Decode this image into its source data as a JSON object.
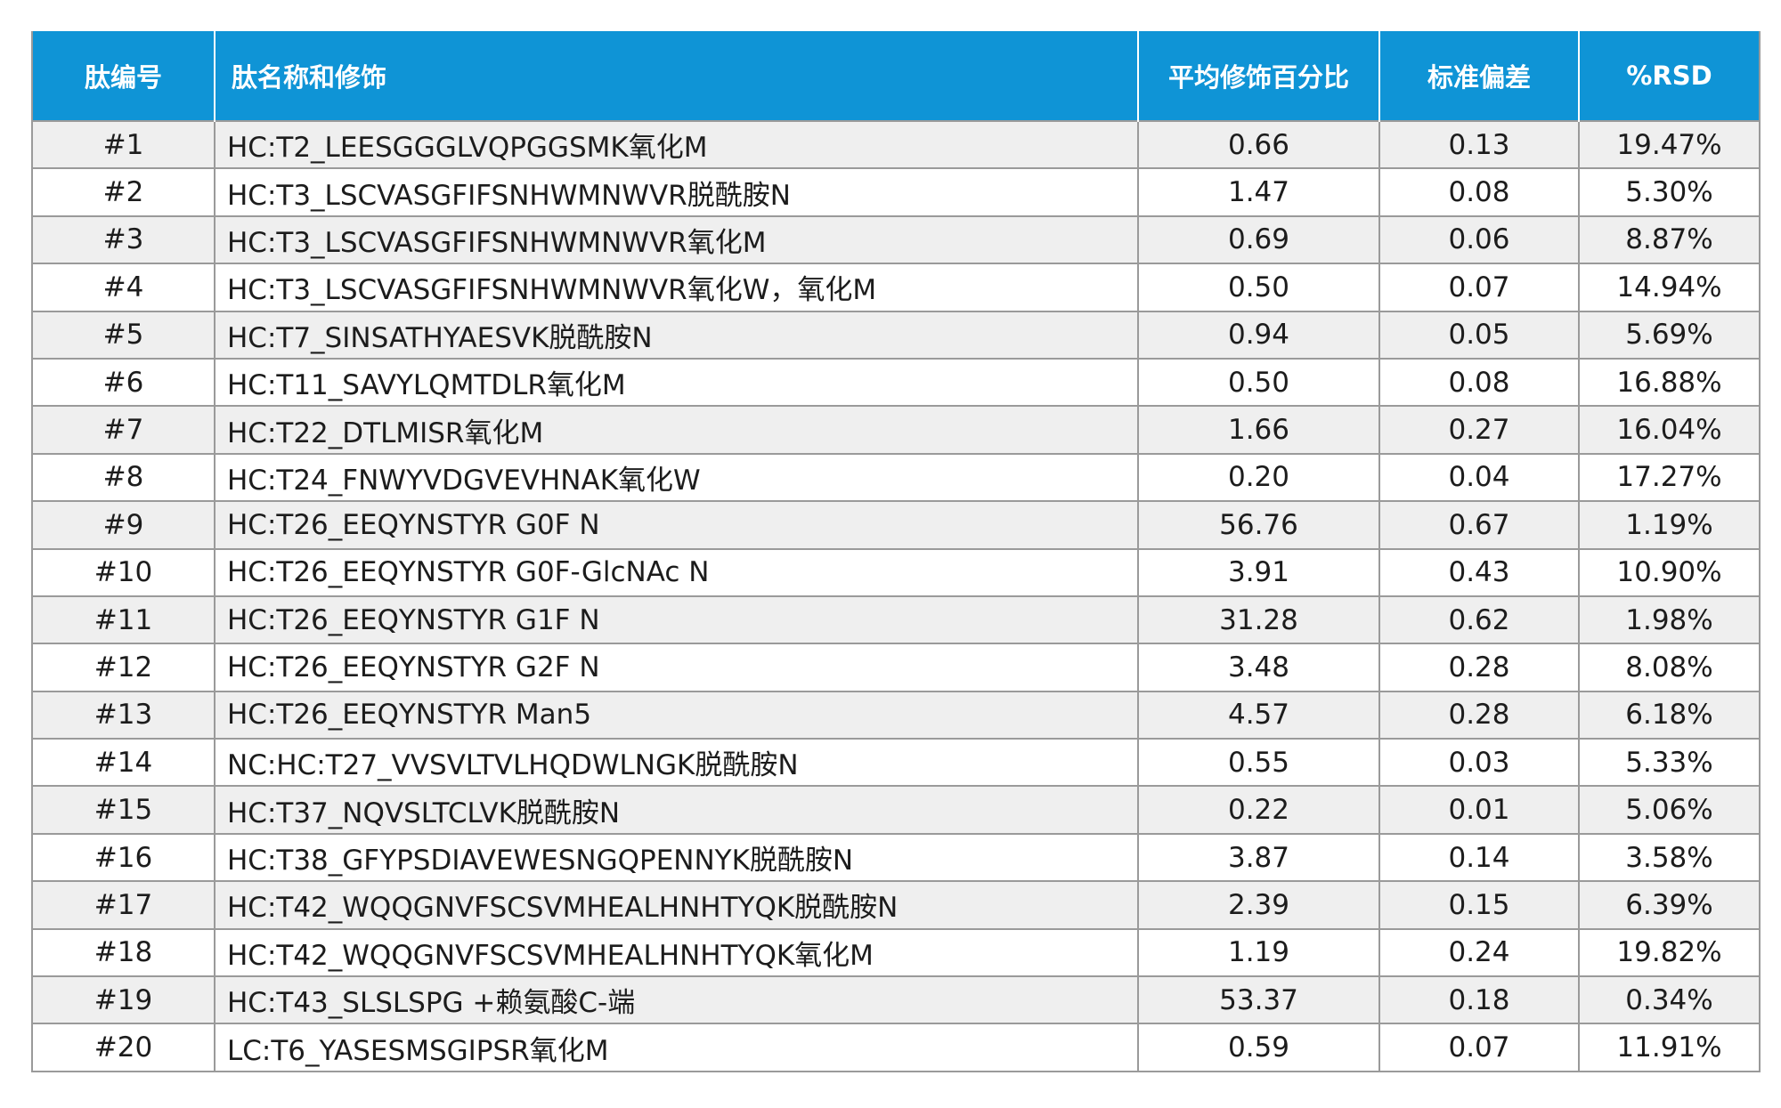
{
  "headers": {
    "id": "肽编号",
    "name": "肽名称和修饰",
    "mean": "平均修饰百分比",
    "sd": "标准偏差",
    "rsd": "%RSD"
  },
  "rows": [
    {
      "id": "#1",
      "name": "HC:T2_LEESGGGLVQPGGSMK氧化M",
      "mean": "0.66",
      "sd": "0.13",
      "rsd": "19.47%"
    },
    {
      "id": "#2",
      "name": "HC:T3_LSCVASGFIFSNHWMNWVR脱酰胺N",
      "mean": "1.47",
      "sd": "0.08",
      "rsd": "5.30%"
    },
    {
      "id": "#3",
      "name": "HC:T3_LSCVASGFIFSNHWMNWVR氧化M",
      "mean": "0.69",
      "sd": "0.06",
      "rsd": "8.87%"
    },
    {
      "id": "#4",
      "name": "HC:T3_LSCVASGFIFSNHWMNWVR氧化W，氧化M",
      "mean": "0.50",
      "sd": "0.07",
      "rsd": "14.94%"
    },
    {
      "id": "#5",
      "name": "HC:T7_SINSATHYAESVK脱酰胺N",
      "mean": "0.94",
      "sd": "0.05",
      "rsd": "5.69%"
    },
    {
      "id": "#6",
      "name": "HC:T11_SAVYLQMTDLR氧化M",
      "mean": "0.50",
      "sd": "0.08",
      "rsd": "16.88%"
    },
    {
      "id": "#7",
      "name": "HC:T22_DTLMISR氧化M",
      "mean": "1.66",
      "sd": "0.27",
      "rsd": "16.04%"
    },
    {
      "id": "#8",
      "name": "HC:T24_FNWYVDGVEVHNAK氧化W",
      "mean": "0.20",
      "sd": "0.04",
      "rsd": "17.27%"
    },
    {
      "id": "#9",
      "name": "HC:T26_EEQYNSTYR G0F N",
      "mean": "56.76",
      "sd": "0.67",
      "rsd": "1.19%"
    },
    {
      "id": "#10",
      "name": "HC:T26_EEQYNSTYR G0F-GlcNAc N",
      "mean": "3.91",
      "sd": "0.43",
      "rsd": "10.90%"
    },
    {
      "id": "#11",
      "name": "HC:T26_EEQYNSTYR G1F N",
      "mean": "31.28",
      "sd": "0.62",
      "rsd": "1.98%"
    },
    {
      "id": "#12",
      "name": "HC:T26_EEQYNSTYR G2F N",
      "mean": "3.48",
      "sd": "0.28",
      "rsd": "8.08%"
    },
    {
      "id": "#13",
      "name": "HC:T26_EEQYNSTYR Man5",
      "mean": "4.57",
      "sd": "0.28",
      "rsd": "6.18%"
    },
    {
      "id": "#14",
      "name": "NC:HC:T27_VVSVLTVLHQDWLNGK脱酰胺N",
      "mean": "0.55",
      "sd": "0.03",
      "rsd": "5.33%"
    },
    {
      "id": "#15",
      "name": "HC:T37_NQVSLTCLVK脱酰胺N",
      "mean": "0.22",
      "sd": "0.01",
      "rsd": "5.06%"
    },
    {
      "id": "#16",
      "name": "HC:T38_GFYPSDIAVEWESNGQPENNYK脱酰胺N",
      "mean": "3.87",
      "sd": "0.14",
      "rsd": "3.58%"
    },
    {
      "id": "#17",
      "name": "HC:T42_WQQGNVFSCSVMHEALHNHTYQK脱酰胺N",
      "mean": "2.39",
      "sd": "0.15",
      "rsd": "6.39%"
    },
    {
      "id": "#18",
      "name": "HC:T42_WQQGNVFSCSVMHEALHNHTYQK氧化M",
      "mean": "1.19",
      "sd": "0.24",
      "rsd": "19.82%"
    },
    {
      "id": "#19",
      "name": "HC:T43_SLSLSPG +赖氨酸C-端",
      "mean": "53.37",
      "sd": "0.18",
      "rsd": "0.34%"
    },
    {
      "id": "#20",
      "name": "LC:T6_YASESMSGIPSR氧化M",
      "mean": "0.59",
      "sd": "0.07",
      "rsd": "11.91%"
    }
  ],
  "colors": {
    "header_bg": "#0f94d6",
    "header_text": "#ffffff",
    "row_alt_bg": "#efefef",
    "border": "#9a9a9a"
  }
}
